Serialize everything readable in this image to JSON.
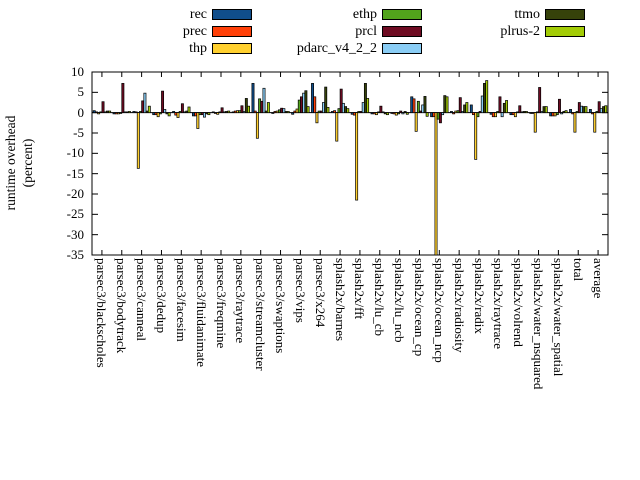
{
  "chart_data": {
    "type": "bar",
    "title": "",
    "xlabel": "",
    "ylabel_lines": [
      "runtime overhead",
      "(percent)"
    ],
    "ylim": [
      -35,
      10
    ],
    "yticks": [
      10,
      5,
      0,
      -5,
      -10,
      -15,
      -20,
      -25,
      -30,
      -35
    ],
    "grid": false,
    "legend_position": "top",
    "legend_columns": [
      [
        "rec",
        "prec",
        "thp"
      ],
      [
        "ethp",
        "prcl",
        "pdarc_v4_2_2"
      ],
      [
        "ttmo",
        "plrus-2"
      ]
    ],
    "categories": [
      "parsec3/blackscholes",
      "parsec3/bodytrack",
      "parsec3/canneal",
      "parsec3/dedup",
      "parsec3/facesim",
      "parsec3/fluidanimate",
      "parsec3/freqmine",
      "parsec3/raytrace",
      "parsec3/streamcluster",
      "parsec3/swaptions",
      "parsec3/vips",
      "parsec3/x264",
      "splash2x/barnes",
      "splash2x/fft",
      "splash2x/lu_cb",
      "splash2x/lu_ncb",
      "splash2x/ocean_cp",
      "splash2x/ocean_ncp",
      "splash2x/radiosity",
      "splash2x/radix",
      "splash2x/raytrace",
      "splash2x/volrend",
      "splash2x/water_nsquared",
      "splash2x/water_spatial",
      "total",
      "average"
    ],
    "series": [
      {
        "name": "rec",
        "color": "#104E8B",
        "values": [
          0.5,
          -0.3,
          0.3,
          -0.5,
          0.3,
          -0.8,
          0.2,
          0.2,
          7.2,
          -0.2,
          -0.4,
          7.2,
          0.3,
          -0.4,
          -0.3,
          -0.2,
          3.9,
          -1.0,
          0.3,
          1.9,
          -0.4,
          -0.5,
          -0.2,
          -0.8,
          0.8,
          0.8
        ]
      },
      {
        "name": "prec",
        "color": "#FF4008",
        "values": [
          0.2,
          -0.3,
          0.2,
          -0.5,
          -0.6,
          -0.8,
          -0.2,
          0.4,
          0.4,
          0.3,
          0.4,
          3.9,
          0.5,
          -0.6,
          -0.3,
          -0.3,
          3.4,
          -1.0,
          -0.3,
          -0.5,
          -1.0,
          -0.5,
          -0.2,
          -0.8,
          -0.3,
          -0.3
        ]
      },
      {
        "name": "thp",
        "color": "#FFD02F",
        "values": [
          -0.3,
          -0.3,
          -13.7,
          -1.0,
          -1.2,
          -3.9,
          -0.4,
          0.5,
          -6.3,
          0.4,
          0.9,
          -2.5,
          -7.0,
          -21.5,
          -0.5,
          -0.6,
          -4.6,
          -35.0,
          0.4,
          -11.5,
          -1.0,
          -1.0,
          -4.8,
          -0.8,
          -4.8,
          -4.8
        ]
      },
      {
        "name": "ethp",
        "color": "#52A41C",
        "values": [
          0.2,
          -0.2,
          0.3,
          -0.3,
          0.3,
          -0.5,
          0.2,
          0.5,
          3.4,
          0.7,
          3.1,
          0.4,
          1.0,
          0.3,
          0.2,
          -0.3,
          2.8,
          -1.6,
          0.5,
          -1.0,
          0.3,
          0.2,
          0.2,
          -0.5,
          0.3,
          0.3
        ]
      },
      {
        "name": "prcl",
        "color": "#6E0B22",
        "values": [
          2.7,
          7.2,
          2.9,
          5.3,
          2.2,
          -0.5,
          1.2,
          1.7,
          2.8,
          1.1,
          3.9,
          0.4,
          5.8,
          0.3,
          1.6,
          0.4,
          0.4,
          -2.5,
          3.7,
          0.3,
          3.9,
          1.7,
          6.2,
          3.3,
          2.5,
          2.7
        ]
      },
      {
        "name": "pdarc_v4_2_2",
        "color": "#8ACDF5",
        "values": [
          0.2,
          0.2,
          4.8,
          0.8,
          0.2,
          -1.1,
          0.2,
          0.3,
          6.0,
          1.0,
          4.8,
          2.5,
          2.3,
          2.5,
          0.2,
          -0.3,
          1.9,
          -0.5,
          0.3,
          4.1,
          -1.0,
          0.2,
          0.3,
          -0.3,
          1.6,
          1.0
        ]
      },
      {
        "name": "ttmo",
        "color": "#36420A",
        "values": [
          0.4,
          0.2,
          0.4,
          -0.3,
          0.4,
          -0.3,
          0.3,
          3.5,
          0.4,
          0.3,
          5.4,
          6.3,
          1.5,
          7.2,
          -0.3,
          0.3,
          4.0,
          4.2,
          1.9,
          7.2,
          2.3,
          0.3,
          1.5,
          0.3,
          1.5,
          1.5
        ]
      },
      {
        "name": "plrus-2",
        "color": "#A3CC06",
        "values": [
          0.4,
          0.3,
          1.6,
          -0.8,
          1.4,
          -0.5,
          0.4,
          1.6,
          2.5,
          0.3,
          1.5,
          1.3,
          1.0,
          3.5,
          -0.5,
          -0.4,
          -0.9,
          3.9,
          2.5,
          7.9,
          3.0,
          0.3,
          1.5,
          0.5,
          1.5,
          1.7
        ]
      }
    ]
  }
}
